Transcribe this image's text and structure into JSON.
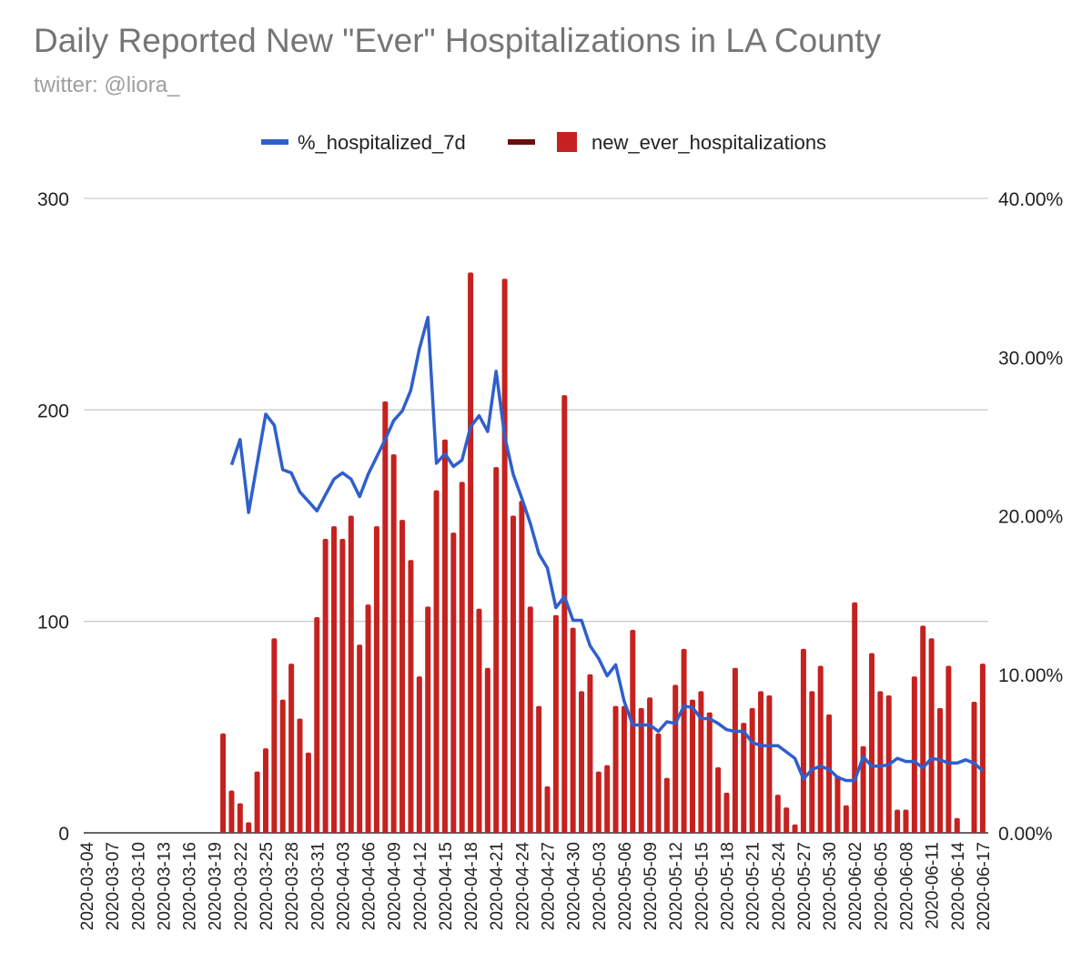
{
  "chart_data": {
    "type": "bar+line",
    "title": "Daily Reported New \"Ever\" Hospitalizations in LA County",
    "subtitle": "twitter: @liora_",
    "legend": [
      "%_hospitalized_7d",
      "",
      "new_ever_hospitalizations"
    ],
    "legend_placement": "top",
    "colors": {
      "line": "#2f5fcc",
      "bar": "#c5221f",
      "middle_marker": "#6b0f0f",
      "grid": "#cccccc"
    },
    "left_axis": {
      "ylim": [
        0,
        300
      ],
      "ticks": [
        "0",
        "100",
        "200",
        "300"
      ]
    },
    "right_axis": {
      "ylim": [
        0,
        40
      ],
      "ticks": [
        "0.00%",
        "10.00%",
        "20.00%",
        "30.00%",
        "40.00%"
      ]
    },
    "grid": true,
    "start_date": "2020-03-04",
    "x_tick_labels": [
      "2020-03-04",
      "2020-03-07",
      "2020-03-10",
      "2020-03-13",
      "2020-03-16",
      "2020-03-19",
      "2020-03-22",
      "2020-03-25",
      "2020-03-28",
      "2020-03-31",
      "2020-04-03",
      "2020-04-06",
      "2020-04-09",
      "2020-04-12",
      "2020-04-15",
      "2020-04-18",
      "2020-04-21",
      "2020-04-24",
      "2020-04-27",
      "2020-04-30",
      "2020-05-03",
      "2020-05-06",
      "2020-05-09",
      "2020-05-12",
      "2020-05-15",
      "2020-05-18",
      "2020-05-21",
      "2020-05-24",
      "2020-05-27",
      "2020-05-30",
      "2020-06-02",
      "2020-06-05",
      "2020-06-08",
      "2020-06-11",
      "2020-06-14",
      "2020-06-17"
    ],
    "series": [
      {
        "name": "new_ever_hospitalizations",
        "axis": "left",
        "type": "bar",
        "values": [
          0,
          0,
          0,
          0,
          0,
          0,
          0,
          0,
          0,
          0,
          0,
          0,
          0,
          0,
          0,
          0,
          47,
          20,
          14,
          5,
          29,
          40,
          92,
          63,
          80,
          54,
          38,
          102,
          139,
          145,
          139,
          150,
          89,
          108,
          145,
          204,
          179,
          148,
          129,
          74,
          107,
          162,
          186,
          142,
          166,
          265,
          106,
          78,
          173,
          262,
          150,
          157,
          107,
          60,
          22,
          103,
          207,
          97,
          67,
          75,
          29,
          32,
          60,
          60,
          96,
          59,
          64,
          47,
          26,
          70,
          87,
          63,
          67,
          57,
          31,
          19,
          78,
          52,
          59,
          67,
          65,
          18,
          12,
          4,
          87,
          67,
          79,
          56,
          27,
          13,
          109,
          41,
          85,
          67,
          65,
          11,
          11,
          74,
          98,
          92,
          59,
          79,
          7,
          null,
          62,
          80
        ]
      },
      {
        "name": "%_hospitalized_7d",
        "axis": "right",
        "type": "line",
        "values": [
          null,
          null,
          null,
          null,
          null,
          null,
          null,
          null,
          null,
          null,
          null,
          null,
          null,
          null,
          null,
          null,
          null,
          23.2,
          24.8,
          20.2,
          23.3,
          26.4,
          25.7,
          22.9,
          22.7,
          21.5,
          20.9,
          20.3,
          21.3,
          22.3,
          22.7,
          22.3,
          21.2,
          22.6,
          23.7,
          24.8,
          26.0,
          26.6,
          27.9,
          30.5,
          32.5,
          23.3,
          23.9,
          23.1,
          23.5,
          25.6,
          26.3,
          25.3,
          29.1,
          25.0,
          22.6,
          21.1,
          19.5,
          17.6,
          16.7,
          14.2,
          14.9,
          13.4,
          13.4,
          11.8,
          11.0,
          9.9,
          10.6,
          8.3,
          6.8,
          6.8,
          6.8,
          6.4,
          7.0,
          6.9,
          8.0,
          7.9,
          7.2,
          7.2,
          6.9,
          6.5,
          6.4,
          6.4,
          5.7,
          5.5,
          5.5,
          5.5,
          5.1,
          4.7,
          3.4,
          4.0,
          4.2,
          4.0,
          3.5,
          3.3,
          3.3,
          4.8,
          4.2,
          4.2,
          4.3,
          4.7,
          4.5,
          4.5,
          4.1,
          4.7,
          4.6,
          4.4,
          4.4,
          4.6,
          4.4,
          3.9
        ]
      }
    ]
  }
}
